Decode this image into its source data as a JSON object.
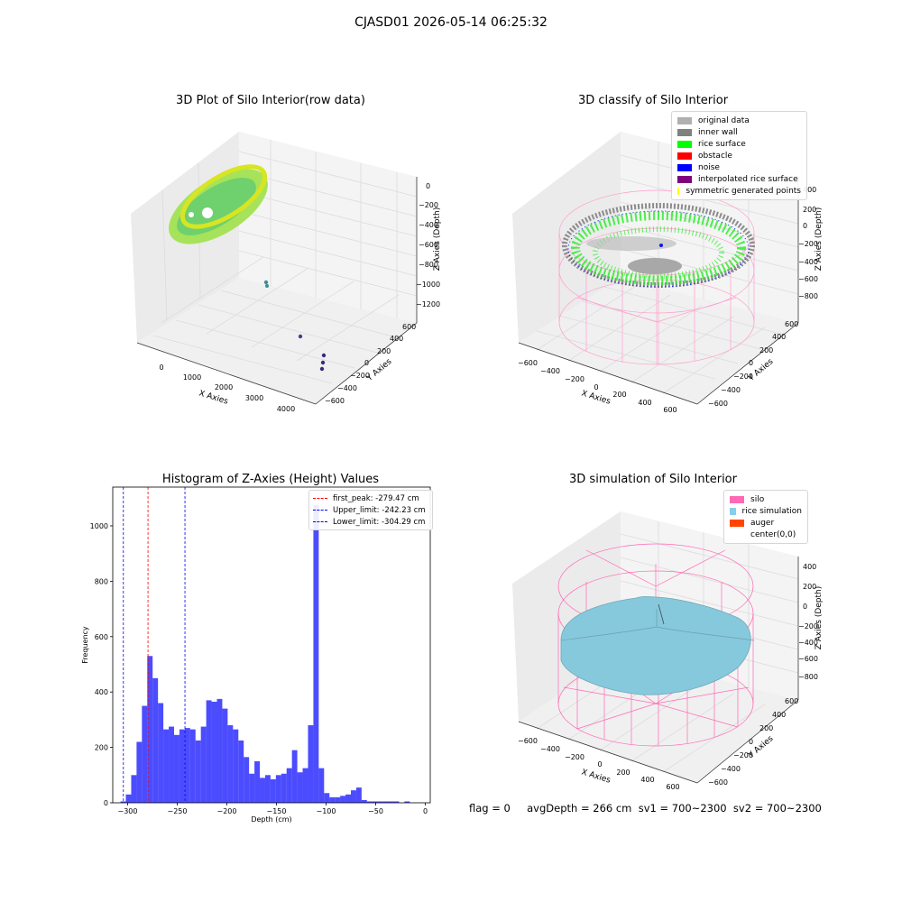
{
  "suptitle": "CJASD01 2026-05-14 06:25:32",
  "panels": {
    "raw": {
      "title": "3D Plot of Silo Interior(row data)",
      "xlabel": "X Axies",
      "ylabel": "Y Axies",
      "zlabel": "Z Axies (Depth)",
      "xticks": [
        "0",
        "1000",
        "2000",
        "3000",
        "4000"
      ],
      "yticks": [
        "600",
        "400",
        "200",
        "0",
        "−200",
        "−400",
        "−600"
      ],
      "zticks": [
        "0",
        "−200",
        "−400",
        "−600",
        "−800",
        "−1000",
        "−1200"
      ]
    },
    "classify": {
      "title": "3D classify of Silo Interior",
      "xlabel": "X Axies",
      "ylabel": "Y Axies",
      "zlabel": "Z Axies (Depth)",
      "xticks": [
        "−600",
        "−400",
        "−200",
        "0",
        "200",
        "400",
        "600"
      ],
      "yticks": [
        "600",
        "400",
        "200",
        "0",
        "−200",
        "−400",
        "−600"
      ],
      "zticks": [
        "200",
        "0",
        "−200",
        "−400",
        "−600",
        "−800"
      ],
      "ztick_top": "400",
      "legend": [
        {
          "label": "original data",
          "color": "#b0b0b0"
        },
        {
          "label": "inner wall",
          "color": "#808080"
        },
        {
          "label": "rice surface",
          "color": "#00ff00"
        },
        {
          "label": "obstacle",
          "color": "#ff0000"
        },
        {
          "label": "noise",
          "color": "#0000ff"
        },
        {
          "label": "interpolated rice surface",
          "color": "#800080"
        },
        {
          "label": "symmetric generated points",
          "color": "#ffff00"
        }
      ]
    },
    "simulation": {
      "title": "3D simulation of Silo Interior",
      "xlabel": "X Axies",
      "ylabel": "Y Axies",
      "zlabel": "Z Axies (Depth)",
      "xticks": [
        "−600",
        "−400",
        "−200",
        "0",
        "200",
        "400",
        "600"
      ],
      "yticks": [
        "600",
        "400",
        "200",
        "0",
        "−200",
        "−400",
        "−600"
      ],
      "zticks": [
        "400",
        "200",
        "0",
        "−200",
        "−400",
        "−600",
        "−800"
      ],
      "legend": [
        {
          "label": "silo",
          "color": "#ff69b4"
        },
        {
          "label": "rice simulation",
          "color": "#87ceeb"
        },
        {
          "label": "auger",
          "color": "#ff4500"
        },
        {
          "label": "center(0,0)",
          "color": "#ffffff"
        }
      ]
    }
  },
  "footer": "flag = 0     avgDepth = 266 cm  sv1 = 700~2300  sv2 = 700~2300",
  "chart_data": [
    {
      "type": "bar",
      "title": "Histogram of Z-Axies (Height) Values",
      "xlabel": "Depth (cm)",
      "ylabel": "Frequency",
      "xlim": [
        -315,
        5
      ],
      "ylim": [
        0,
        1140
      ],
      "xticks": [
        -300,
        -250,
        -200,
        -150,
        -100,
        -50,
        0
      ],
      "yticks": [
        0,
        200,
        400,
        600,
        800,
        1000
      ],
      "bar_color": "#0000ff",
      "bin_width": 5.4,
      "bins_left": [
        -307.2,
        -301.8,
        -296.4,
        -291.0,
        -285.6,
        -280.2,
        -274.8,
        -269.4,
        -264.0,
        -258.6,
        -253.2,
        -247.8,
        -242.4,
        -237.0,
        -231.6,
        -226.2,
        -220.8,
        -215.4,
        -210.0,
        -204.6,
        -199.2,
        -193.8,
        -188.4,
        -183.0,
        -177.6,
        -172.2,
        -166.8,
        -161.4,
        -156.0,
        -150.6,
        -145.2,
        -139.8,
        -134.4,
        -129.0,
        -123.6,
        -118.2,
        -112.8,
        -107.4,
        -102.0,
        -96.6,
        -91.2,
        -85.8,
        -80.4,
        -75.0,
        -69.6,
        -64.2,
        -58.8,
        -53.4,
        -48.0,
        -42.6,
        -37.2,
        -31.8,
        -26.4,
        -21.0,
        -15.6,
        -10.2,
        -4.8,
        0.6
      ],
      "values": [
        5,
        30,
        100,
        220,
        350,
        530,
        450,
        360,
        265,
        275,
        245,
        265,
        270,
        265,
        225,
        275,
        370,
        365,
        375,
        340,
        280,
        265,
        225,
        165,
        105,
        150,
        90,
        100,
        85,
        100,
        105,
        125,
        190,
        110,
        125,
        280,
        1075,
        125,
        35,
        20,
        20,
        25,
        30,
        45,
        55,
        10,
        5,
        5,
        5,
        5,
        5,
        5,
        0,
        5,
        0,
        0,
        0,
        0
      ],
      "vlines": [
        {
          "label": "first_peak: -279.47 cm",
          "x": -279.47,
          "color": "#ff0000"
        },
        {
          "label": "Upper_limit: -242.23 cm",
          "x": -242.23,
          "color": "#0000ff"
        },
        {
          "label": "Lower_limit: -304.29 cm",
          "x": -304.29,
          "color": "#0000ff"
        }
      ]
    }
  ]
}
